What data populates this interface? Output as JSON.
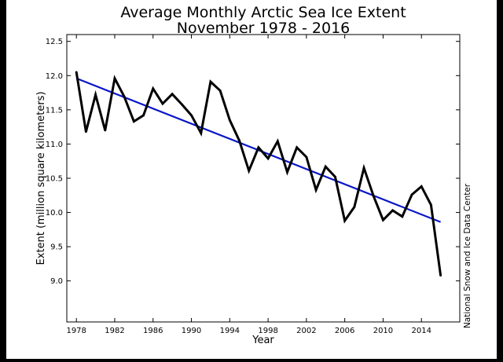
{
  "colors": {
    "frame": "#000000",
    "figure_background": "#ffffff",
    "data_line": "#000000",
    "trend_line": "#0a16c8",
    "text": "#000000"
  },
  "chart_data": {
    "type": "line",
    "title": "Average Monthly Arctic Sea Ice Extent",
    "subtitle": "November 1978 - 2016",
    "xlabel": "Year",
    "ylabel": "Extent (million square kilometers)",
    "credit": "National Snow and Ice Data Center",
    "xlim": [
      1977,
      2018
    ],
    "ylim": [
      8.4,
      12.6
    ],
    "xticks": [
      1978,
      1982,
      1986,
      1990,
      1994,
      1998,
      2002,
      2006,
      2010,
      2014
    ],
    "yticks": [
      9.0,
      9.5,
      10.0,
      10.5,
      11.0,
      11.5,
      12.0,
      12.5
    ],
    "grid": false,
    "legend": "none",
    "series": [
      {
        "x": [
          1978,
          1979,
          1980,
          1981,
          1982,
          1983,
          1984,
          1985,
          1986,
          1987,
          1988,
          1989,
          1990,
          1991,
          1992,
          1993,
          1994,
          1995,
          1996,
          1997,
          1998,
          1999,
          2000,
          2001,
          2002,
          2003,
          2004,
          2005,
          2006,
          2007,
          2008,
          2009,
          2010,
          2011,
          2012,
          2013,
          2014,
          2015,
          2016
        ],
        "y": [
          12.05,
          11.18,
          11.72,
          11.2,
          11.96,
          11.69,
          11.33,
          11.42,
          11.81,
          11.59,
          11.73,
          11.58,
          11.42,
          11.16,
          11.91,
          11.78,
          11.35,
          11.05,
          10.61,
          10.95,
          10.79,
          11.04,
          10.59,
          10.95,
          10.81,
          10.33,
          10.67,
          10.52,
          9.88,
          10.08,
          10.65,
          10.24,
          9.89,
          10.03,
          9.94,
          10.26,
          10.38,
          10.11,
          9.08
        ]
      },
      {
        "x": [
          1978,
          2016
        ],
        "y": [
          11.96,
          9.86
        ]
      }
    ]
  }
}
